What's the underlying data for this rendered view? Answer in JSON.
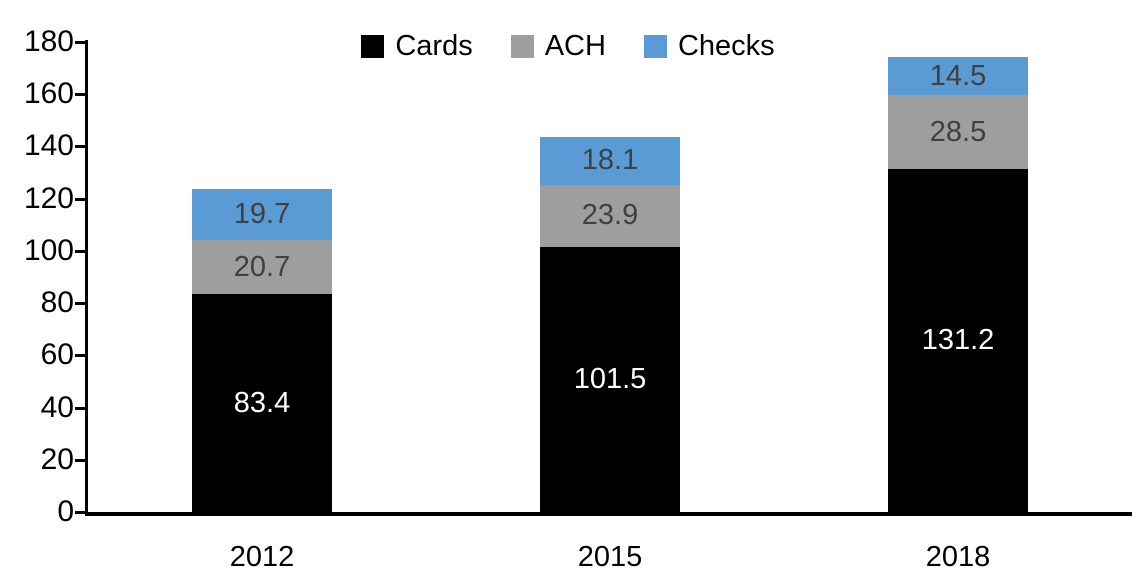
{
  "chart_data": {
    "type": "bar",
    "stacked": true,
    "title": "",
    "xlabel": "",
    "ylabel": "",
    "categories": [
      "2012",
      "2015",
      "2018"
    ],
    "series": [
      {
        "name": "Cards",
        "color": "#000000",
        "label_color": "#ffffff",
        "values": [
          83.4,
          101.5,
          131.2
        ]
      },
      {
        "name": "ACH",
        "color": "#9e9e9e",
        "label_color": "#404040",
        "values": [
          20.7,
          23.9,
          28.5
        ]
      },
      {
        "name": "Checks",
        "color": "#5b9bd5",
        "label_color": "#404040",
        "values": [
          19.7,
          18.1,
          14.5
        ]
      }
    ],
    "y_ticks": [
      0,
      20,
      40,
      60,
      80,
      100,
      120,
      140,
      160,
      180
    ],
    "ylim": [
      0,
      180
    ],
    "grid": false,
    "legend_position": "top",
    "axis_color": "#000000",
    "background_color": "#ffffff"
  }
}
